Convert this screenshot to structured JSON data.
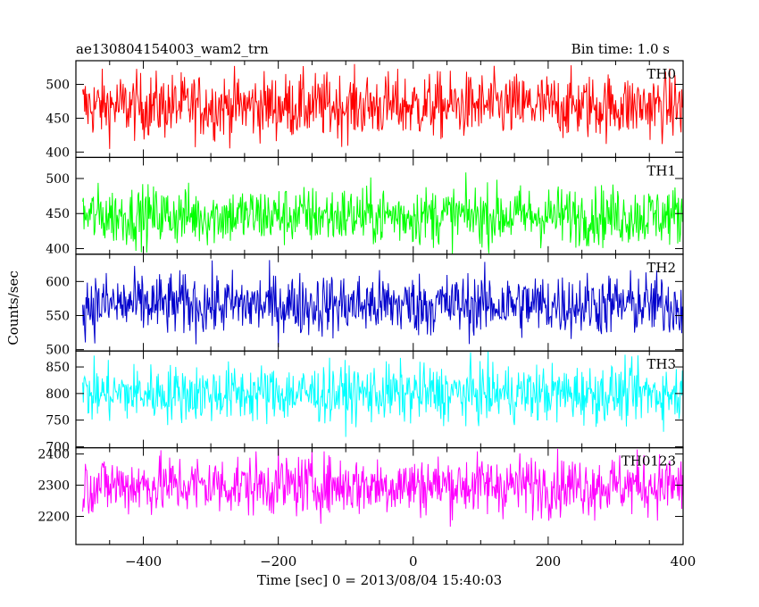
{
  "title_left": "ae130804154003_wam2_trn",
  "title_right": "Bin time: 1.0 s",
  "ylabel": "Counts/sec",
  "xlabel": "Time [sec] 0 = 2013/08/04 15:40:03",
  "chart_data": {
    "type": "line",
    "title": "ae130804154003_wam2_trn",
    "subtitle": "Bin time: 1.0 s",
    "xlabel": "Time [sec] 0 = 2013/08/04 15:40:03",
    "ylabel": "Counts/sec",
    "xlim": [
      -500,
      400
    ],
    "x_ticks": [
      -400,
      -200,
      0,
      200,
      400
    ],
    "x_step": 1.0,
    "grid": false,
    "panels": [
      {
        "name": "TH0",
        "color": "#ff0000",
        "ylim": [
          392,
          535
        ],
        "y_ticks": [
          400,
          450,
          500
        ],
        "mean": 468,
        "spread": 24
      },
      {
        "name": "TH1",
        "color": "#00ff00",
        "ylim": [
          392,
          530
        ],
        "y_ticks": [
          400,
          450,
          500
        ],
        "mean": 447,
        "spread": 21
      },
      {
        "name": "TH2",
        "color": "#0000cc",
        "ylim": [
          498,
          640
        ],
        "y_ticks": [
          500,
          550,
          600
        ],
        "mean": 566,
        "spread": 23
      },
      {
        "name": "TH3",
        "color": "#00ffff",
        "ylim": [
          698,
          880
        ],
        "y_ticks": [
          700,
          750,
          800,
          850
        ],
        "mean": 800,
        "spread": 27
      },
      {
        "name": "TH0123",
        "color": "#ff00ff",
        "ylim": [
          2110,
          2420
        ],
        "y_ticks": [
          2200,
          2300,
          2400
        ],
        "mean": 2300,
        "spread": 48
      }
    ]
  }
}
